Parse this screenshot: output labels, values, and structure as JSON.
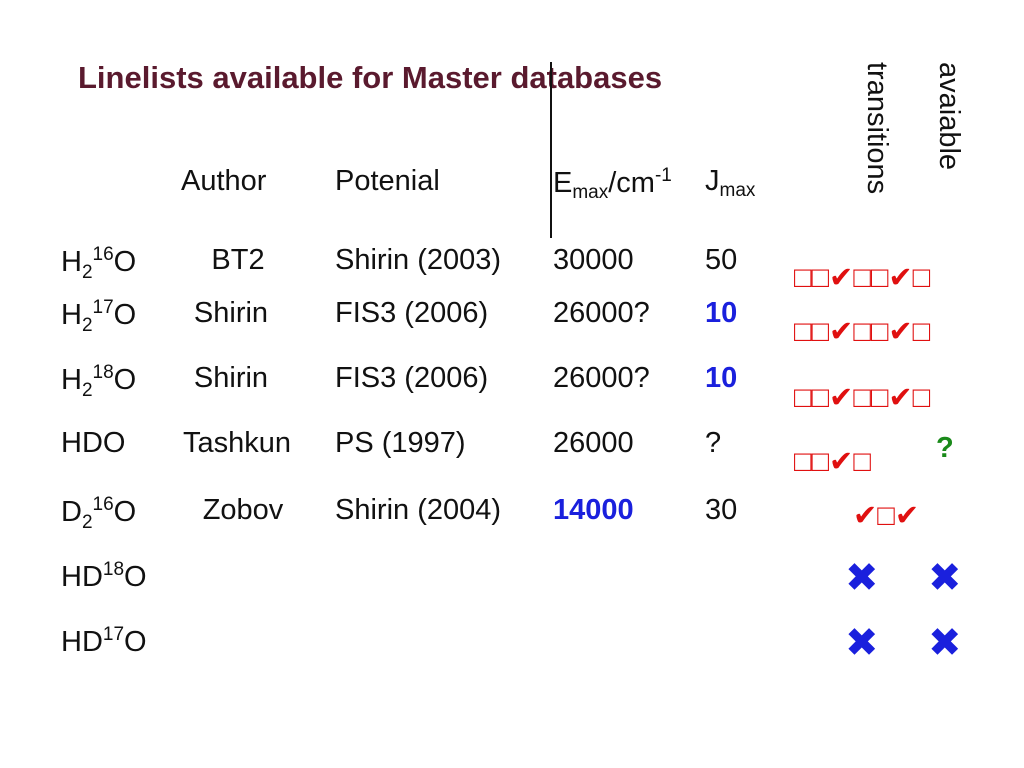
{
  "title": "Linelists available for Master databases",
  "column_flags": [
    "transitions",
    "avaiable"
  ],
  "headers": {
    "author": "Author",
    "potential": "Potenial",
    "emax_base": "E",
    "emax_sub": "max",
    "emax_unit": "/cm",
    "emax_sup": "-1",
    "jmax_base": "J",
    "jmax_sub": "max"
  },
  "rows": [
    {
      "mol": {
        "a": "H",
        "b": "2",
        "c": "16",
        "d": "O"
      },
      "author": "BT2",
      "potential": "Shirin (2003)",
      "emax": "30000",
      "jmax": "50",
      "marks": "□□✔□□✔□",
      "extra": ""
    },
    {
      "mol": {
        "a": "H",
        "b": "2",
        "c": "17",
        "d": "O"
      },
      "author": "Shirin",
      "potential": "FIS3 (2006)",
      "emax": "26000?",
      "jmax": "10",
      "marks": "□□✔□□✔□",
      "extra": ""
    },
    {
      "mol": {
        "a": "H",
        "b": "2",
        "c": "18",
        "d": "O"
      },
      "author": "Shirin",
      "potential": "FIS3 (2006)",
      "emax": "26000?",
      "jmax": "10",
      "marks": "□□✔□□✔□",
      "extra": ""
    },
    {
      "mol": {
        "a": "HDO",
        "b": "",
        "c": "",
        "d": ""
      },
      "author": "Tashkun",
      "potential": "PS (1997)",
      "emax": "26000",
      "jmax": "?",
      "marks": "□□✔□",
      "extra": "?"
    },
    {
      "mol": {
        "a": "D",
        "b": "2",
        "c": "16",
        "d": "O"
      },
      "author": "Zobov",
      "potential": "Shirin (2004)",
      "emax": "14000",
      "jmax": "30",
      "marks": "✔□✔",
      "extra": ""
    },
    {
      "mol": {
        "a": "HD",
        "b": "",
        "c": "18",
        "d": "O"
      },
      "author": "",
      "potential": "",
      "emax": "",
      "jmax": "",
      "marks": "",
      "extra": ""
    },
    {
      "mol": {
        "a": "HD",
        "b": "",
        "c": "17",
        "d": "O"
      },
      "author": "",
      "potential": "",
      "emax": "",
      "jmax": "",
      "marks": "",
      "extra": ""
    }
  ],
  "cross_symbol": "✖",
  "colors": {
    "title": "#5a1a2e",
    "highlight_blue": "#1a20dd",
    "mark_red": "#e01010",
    "mark_green": "#1a8a1a"
  }
}
